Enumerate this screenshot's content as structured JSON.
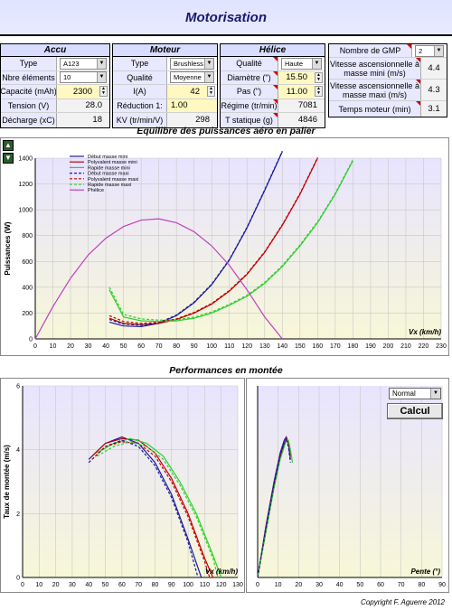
{
  "title": "Motorisation",
  "accu": {
    "header": "Accu",
    "rows": [
      {
        "label": "Type",
        "value": "A123",
        "kind": "select"
      },
      {
        "label": "Nbre éléments",
        "value": "10",
        "kind": "select"
      },
      {
        "label": "Capacité (mAh)",
        "value": "2300",
        "kind": "spin"
      },
      {
        "label": "Tension (V)",
        "value": "28.0",
        "kind": "value"
      },
      {
        "label": "Décharge (xC)",
        "value": "18",
        "kind": "value"
      }
    ]
  },
  "moteur": {
    "header": "Moteur",
    "rows": [
      {
        "label": "Type",
        "value": "Brushless",
        "kind": "select"
      },
      {
        "label": "Qualité",
        "value": "Moyenne",
        "kind": "select"
      },
      {
        "label": "I(A)",
        "value": "42",
        "kind": "spin"
      },
      {
        "label": "Réduction  1:",
        "value": "1.00",
        "kind": "input"
      },
      {
        "label": "KV (tr/min/V)",
        "value": "298",
        "kind": "value"
      }
    ]
  },
  "helice": {
    "header": "Hélice",
    "rows": [
      {
        "label": "Qualité",
        "value": "Haute",
        "kind": "select"
      },
      {
        "label": "Diamètre (\")",
        "value": "15.50",
        "kind": "spin"
      },
      {
        "label": "Pas (\")",
        "value": "11.00",
        "kind": "spin"
      },
      {
        "label": "Régime (tr/min)",
        "value": "7081",
        "kind": "value"
      },
      {
        "label": "T statique (g)",
        "value": "4846",
        "kind": "value"
      }
    ]
  },
  "gmp": {
    "label": "Nombre de GMP",
    "value": "2",
    "rows": [
      {
        "label": "Vitesse ascensionnelle à masse mini (m/s)",
        "value": "4.4"
      },
      {
        "label": "Vitesse ascensionnelle à masse maxi (m/s)",
        "value": "4.3"
      },
      {
        "label": "Temps moteur (min)",
        "value": "3.1"
      }
    ]
  },
  "chart1_title": "Equilibre des puissances aéro en palier",
  "chart2_title": "Performances en montée",
  "controls": {
    "mode": "Normal",
    "calc_label": "Calcul",
    "up_arrow": "▲",
    "down_arrow": "▼"
  },
  "copyright": "Copyright F. Aguerre 2012",
  "colors": {
    "blue": "#1a1aa0",
    "red": "#c00000",
    "green": "#30d030",
    "magenta": "#c040c0",
    "plotbg": "#f7f7d8",
    "plotbg2": "#e8e4ff"
  },
  "chart_data": [
    {
      "type": "line",
      "title": "Equilibre des puissances aéro en palier",
      "xlabel": "Vx (km/h)",
      "ylabel": "Puissances (W)",
      "xlim": [
        0,
        230
      ],
      "ylim": [
        0,
        1400
      ],
      "xticks": [
        0,
        10,
        20,
        30,
        40,
        50,
        60,
        70,
        80,
        90,
        100,
        110,
        120,
        130,
        140,
        150,
        160,
        170,
        180,
        190,
        200,
        210,
        220,
        230
      ],
      "yticks": [
        0,
        200,
        400,
        600,
        800,
        1000,
        1200,
        1400
      ],
      "legend_position": "top-left",
      "series": [
        {
          "name": "Début masse mini",
          "color": "#1a1aa0",
          "dash": "solid",
          "x": [
            42,
            50,
            60,
            70,
            80,
            90,
            100,
            110,
            120,
            130,
            140
          ],
          "y": [
            130,
            100,
            95,
            120,
            180,
            280,
            420,
            610,
            860,
            1150,
            1450
          ]
        },
        {
          "name": "Polyvalent masse mini",
          "color": "#c00000",
          "dash": "solid",
          "x": [
            42,
            50,
            60,
            70,
            80,
            90,
            100,
            110,
            120,
            130,
            140,
            150,
            160
          ],
          "y": [
            160,
            120,
            110,
            120,
            150,
            200,
            270,
            370,
            500,
            670,
            880,
            1120,
            1400
          ]
        },
        {
          "name": "Rapide masse mini",
          "color": "#30d030",
          "dash": "solid",
          "x": [
            42,
            50,
            60,
            70,
            80,
            90,
            100,
            110,
            120,
            130,
            140,
            150,
            160,
            170,
            180
          ],
          "y": [
            380,
            170,
            140,
            135,
            140,
            160,
            200,
            260,
            330,
            430,
            560,
            720,
            900,
            1120,
            1380
          ]
        },
        {
          "name": "Début masse maxi",
          "color": "#1a1aa0",
          "dash": "dashed",
          "x": [
            42,
            50,
            60,
            70,
            80,
            90,
            100,
            110,
            120,
            130,
            140
          ],
          "y": [
            150,
            115,
            105,
            125,
            185,
            285,
            425,
            615,
            865,
            1155,
            1455
          ]
        },
        {
          "name": "Polyvalent masse maxi",
          "color": "#c00000",
          "dash": "dashed",
          "x": [
            42,
            50,
            60,
            70,
            80,
            90,
            100,
            110,
            120,
            130,
            140,
            150,
            160
          ],
          "y": [
            180,
            135,
            120,
            128,
            155,
            205,
            275,
            375,
            505,
            675,
            885,
            1125,
            1405
          ]
        },
        {
          "name": "Rapide masse maxi",
          "color": "#30d030",
          "dash": "dashed",
          "x": [
            42,
            50,
            60,
            70,
            80,
            90,
            100,
            110,
            120,
            130,
            140,
            150,
            160,
            170,
            180
          ],
          "y": [
            400,
            190,
            155,
            145,
            148,
            168,
            208,
            268,
            338,
            438,
            568,
            728,
            908,
            1128,
            1388
          ]
        },
        {
          "name": "Phélice",
          "color": "#c040c0",
          "dash": "solid",
          "x": [
            0,
            10,
            20,
            30,
            40,
            50,
            60,
            70,
            80,
            90,
            100,
            110,
            120,
            130,
            140
          ],
          "y": [
            0,
            250,
            470,
            650,
            780,
            870,
            920,
            930,
            900,
            830,
            720,
            570,
            380,
            170,
            0
          ]
        }
      ]
    },
    {
      "type": "line",
      "title": "Performances en montée",
      "xlabel": "Vx (km/h)",
      "ylabel": "Taux de montée (m/s)",
      "xlim": [
        0,
        130
      ],
      "ylim": [
        0,
        6
      ],
      "xticks": [
        0,
        10,
        20,
        30,
        40,
        50,
        60,
        70,
        80,
        90,
        100,
        110,
        120,
        130
      ],
      "yticks": [
        0,
        2,
        4,
        6
      ],
      "series": [
        {
          "name": "Début masse mini",
          "color": "#1a1aa0",
          "dash": "solid",
          "x": [
            40,
            50,
            60,
            70,
            80,
            90,
            100,
            108
          ],
          "y": [
            3.7,
            4.2,
            4.4,
            4.2,
            3.6,
            2.6,
            1.2,
            0
          ]
        },
        {
          "name": "Polyvalent masse mini",
          "color": "#c00000",
          "dash": "solid",
          "x": [
            42,
            50,
            60,
            70,
            80,
            90,
            100,
            110,
            115
          ],
          "y": [
            3.8,
            4.2,
            4.35,
            4.3,
            3.9,
            3.1,
            2.0,
            0.6,
            0
          ]
        },
        {
          "name": "Rapide masse mini",
          "color": "#30d030",
          "dash": "solid",
          "x": [
            45,
            55,
            65,
            75,
            85,
            95,
            105,
            115,
            120
          ],
          "y": [
            3.9,
            4.2,
            4.35,
            4.2,
            3.8,
            3.0,
            2.0,
            0.7,
            0
          ]
        },
        {
          "name": "Début masse maxi",
          "color": "#1a1aa0",
          "dash": "dashed",
          "x": [
            40,
            50,
            60,
            70,
            80,
            90,
            100,
            106
          ],
          "y": [
            3.6,
            4.1,
            4.3,
            4.1,
            3.5,
            2.5,
            1.1,
            0
          ]
        },
        {
          "name": "Polyvalent masse maxi",
          "color": "#c00000",
          "dash": "dashed",
          "x": [
            42,
            50,
            60,
            70,
            80,
            90,
            100,
            110,
            113
          ],
          "y": [
            3.7,
            4.1,
            4.25,
            4.2,
            3.8,
            3.0,
            1.9,
            0.5,
            0
          ]
        },
        {
          "name": "Rapide masse maxi",
          "color": "#30d030",
          "dash": "dashed",
          "x": [
            45,
            55,
            65,
            75,
            85,
            95,
            105,
            115,
            118
          ],
          "y": [
            3.8,
            4.1,
            4.25,
            4.1,
            3.7,
            2.9,
            1.9,
            0.6,
            0
          ]
        }
      ]
    },
    {
      "type": "line",
      "title": "",
      "xlabel": "Pente (°)",
      "ylabel": "",
      "xlim": [
        0,
        90
      ],
      "ylim": [
        0,
        6
      ],
      "xticks": [
        0,
        10,
        20,
        30,
        40,
        50,
        60,
        70,
        80,
        90
      ],
      "series": [
        {
          "name": "Début masse mini",
          "color": "#1a1aa0",
          "dash": "solid",
          "x": [
            0,
            4,
            8,
            11,
            13,
            14,
            15,
            16
          ],
          "y": [
            0,
            1.6,
            3.0,
            3.9,
            4.3,
            4.4,
            4.2,
            3.7
          ]
        },
        {
          "name": "Polyvalent masse mini",
          "color": "#c00000",
          "dash": "solid",
          "x": [
            0,
            4,
            8,
            11,
            13,
            14,
            15,
            16
          ],
          "y": [
            0,
            1.5,
            2.9,
            3.8,
            4.2,
            4.35,
            4.2,
            3.8
          ]
        },
        {
          "name": "Rapide masse mini",
          "color": "#30d030",
          "dash": "solid",
          "x": [
            0,
            4,
            8,
            11,
            13,
            14,
            15,
            16,
            17
          ],
          "y": [
            0,
            1.4,
            2.8,
            3.7,
            4.1,
            4.3,
            4.3,
            4.0,
            3.6
          ]
        },
        {
          "name": "Début masse maxi",
          "color": "#1a1aa0",
          "dash": "dashed",
          "x": [
            0,
            4,
            8,
            11,
            13,
            14,
            15,
            16
          ],
          "y": [
            0,
            1.5,
            2.9,
            3.8,
            4.2,
            4.3,
            4.1,
            3.6
          ]
        }
      ]
    }
  ]
}
